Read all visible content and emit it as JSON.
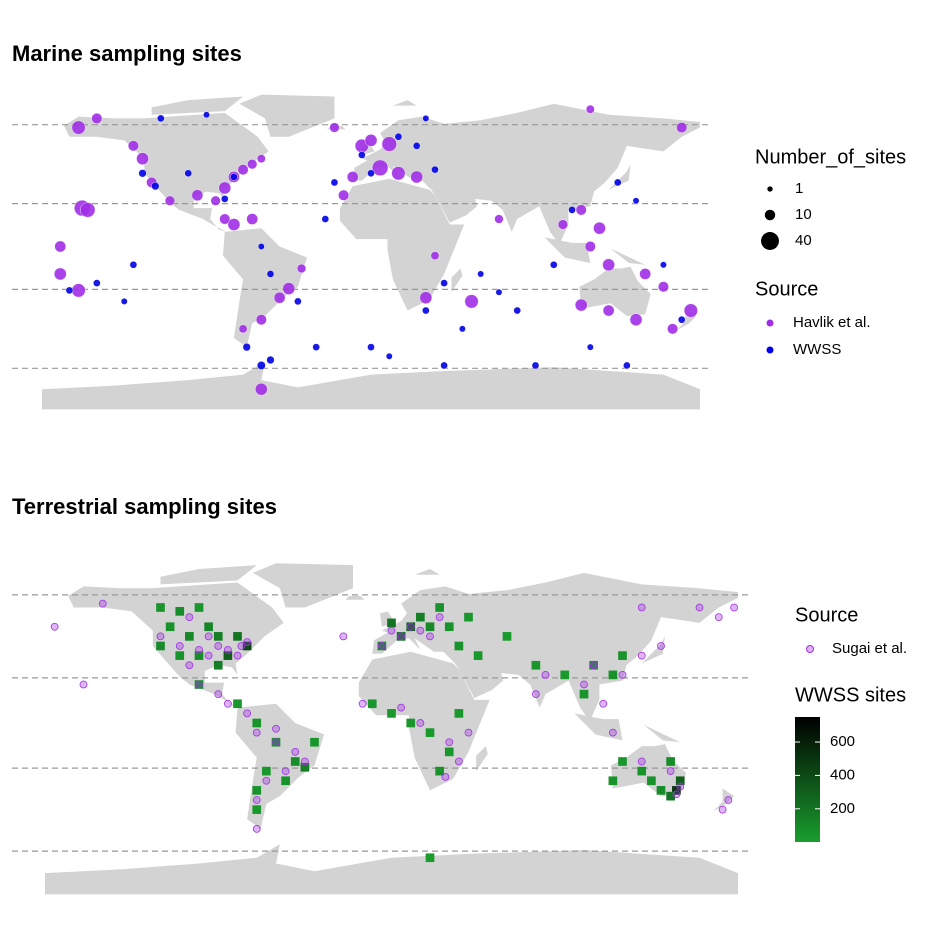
{
  "marine": {
    "title": "Marine sampling sites",
    "size_legend": {
      "title": "Number_of_sites",
      "values": [
        1,
        10,
        40
      ]
    },
    "color_legend": {
      "title": "Source",
      "entries": [
        {
          "name": "Havlik et al.",
          "color": "#a02ee6",
          "sites": [
            [
              -160,
              65,
              20
            ],
            [
              -150,
              70,
              10
            ],
            [
              -130,
              55,
              10
            ],
            [
              -125,
              48,
              15
            ],
            [
              -120,
              35,
              10
            ],
            [
              -110,
              25,
              8
            ],
            [
              -95,
              28,
              12
            ],
            [
              -85,
              25,
              8
            ],
            [
              -80,
              32,
              15
            ],
            [
              -75,
              38,
              12
            ],
            [
              -70,
              42,
              10
            ],
            [
              -65,
              45,
              8
            ],
            [
              -60,
              48,
              5
            ],
            [
              -158,
              21,
              30
            ],
            [
              -155,
              20,
              25
            ],
            [
              -170,
              -15,
              15
            ],
            [
              -160,
              -24,
              20
            ],
            [
              -170,
              0,
              12
            ],
            [
              -80,
              15,
              10
            ],
            [
              -75,
              12,
              15
            ],
            [
              -65,
              15,
              12
            ],
            [
              -45,
              -23,
              15
            ],
            [
              -50,
              -28,
              12
            ],
            [
              -60,
              -40,
              10
            ],
            [
              -70,
              -45,
              5
            ],
            [
              -38,
              -12,
              6
            ],
            [
              -15,
              28,
              10
            ],
            [
              -5,
              55,
              20
            ],
            [
              0,
              58,
              15
            ],
            [
              10,
              56,
              25
            ],
            [
              5,
              43,
              30
            ],
            [
              15,
              40,
              20
            ],
            [
              25,
              38,
              15
            ],
            [
              -10,
              38,
              12
            ],
            [
              30,
              -28,
              15
            ],
            [
              55,
              -30,
              20
            ],
            [
              35,
              -5,
              5
            ],
            [
              70,
              15,
              6
            ],
            [
              105,
              12,
              8
            ],
            [
              115,
              20,
              10
            ],
            [
              125,
              10,
              15
            ],
            [
              120,
              0,
              10
            ],
            [
              130,
              -10,
              15
            ],
            [
              150,
              -15,
              12
            ],
            [
              160,
              -22,
              10
            ],
            [
              115,
              -32,
              15
            ],
            [
              130,
              -35,
              12
            ],
            [
              145,
              -40,
              15
            ],
            [
              175,
              -35,
              20
            ],
            [
              165,
              -45,
              10
            ],
            [
              -60,
              -78,
              15
            ],
            [
              120,
              75,
              5
            ],
            [
              170,
              65,
              10
            ],
            [
              -20,
              65,
              8
            ]
          ]
        },
        {
          "name": "WWSS",
          "color": "#0000e6",
          "sites": [
            [
              -130,
              -10,
              3
            ],
            [
              -150,
              -20,
              3
            ],
            [
              -165,
              -24,
              3
            ],
            [
              -135,
              -30,
              2
            ],
            [
              -115,
              70,
              3
            ],
            [
              -90,
              72,
              2
            ],
            [
              -125,
              40,
              4
            ],
            [
              -118,
              33,
              4
            ],
            [
              -80,
              26,
              3
            ],
            [
              -75,
              38,
              3
            ],
            [
              -100,
              40,
              3
            ],
            [
              -20,
              35,
              3
            ],
            [
              -25,
              15,
              3
            ],
            [
              -60,
              0,
              2
            ],
            [
              -55,
              -15,
              3
            ],
            [
              -40,
              -30,
              3
            ],
            [
              -68,
              -55,
              4
            ],
            [
              -60,
              -65,
              5
            ],
            [
              -55,
              -62,
              4
            ],
            [
              -30,
              -55,
              3
            ],
            [
              0,
              -55,
              3
            ],
            [
              10,
              -60,
              2
            ],
            [
              30,
              -35,
              3
            ],
            [
              40,
              -20,
              3
            ],
            [
              60,
              -15,
              2
            ],
            [
              70,
              -25,
              2
            ],
            [
              80,
              -35,
              3
            ],
            [
              50,
              -45,
              2
            ],
            [
              90,
              -65,
              3
            ],
            [
              120,
              -55,
              2
            ],
            [
              140,
              -65,
              3
            ],
            [
              100,
              -10,
              3
            ],
            [
              110,
              20,
              3
            ],
            [
              135,
              35,
              3
            ],
            [
              145,
              25,
              2
            ],
            [
              160,
              -10,
              2
            ],
            [
              170,
              -40,
              3
            ],
            [
              -5,
              50,
              3
            ],
            [
              15,
              60,
              3
            ],
            [
              25,
              55,
              3
            ],
            [
              35,
              42,
              3
            ],
            [
              0,
              40,
              3
            ],
            [
              30,
              70,
              2
            ],
            [
              40,
              -65,
              3
            ]
          ]
        }
      ]
    }
  },
  "terrestrial": {
    "title": "Terrestrial sampling sites",
    "color_legend": {
      "title": "Source",
      "entries": [
        {
          "name": "Sugai et al.",
          "color": "#a02ee6",
          "sites": [
            [
              -120,
              45
            ],
            [
              -110,
              40
            ],
            [
              -100,
              38
            ],
            [
              -95,
              35
            ],
            [
              -90,
              40
            ],
            [
              -85,
              38
            ],
            [
              -80,
              35
            ],
            [
              -75,
              42
            ],
            [
              -78,
              40
            ],
            [
              -95,
              45
            ],
            [
              -105,
              30
            ],
            [
              -100,
              20
            ],
            [
              -90,
              15
            ],
            [
              -85,
              10
            ],
            [
              -75,
              5
            ],
            [
              -70,
              -5
            ],
            [
              -60,
              -10
            ],
            [
              -50,
              -15
            ],
            [
              -45,
              -20
            ],
            [
              -55,
              -25
            ],
            [
              -65,
              -30
            ],
            [
              -70,
              -40
            ],
            [
              -60,
              -3
            ],
            [
              -150,
              62
            ],
            [
              -175,
              50
            ],
            [
              -160,
              20
            ],
            [
              0,
              48
            ],
            [
              5,
              45
            ],
            [
              10,
              50
            ],
            [
              15,
              48
            ],
            [
              20,
              45
            ],
            [
              -5,
              40
            ],
            [
              25,
              55
            ],
            [
              -15,
              10
            ],
            [
              5,
              8
            ],
            [
              15,
              0
            ],
            [
              30,
              -10
            ],
            [
              35,
              -20
            ],
            [
              28,
              -28
            ],
            [
              40,
              -5
            ],
            [
              -70,
              -55
            ],
            [
              80,
              25
            ],
            [
              100,
              20
            ],
            [
              105,
              30
            ],
            [
              120,
              25
            ],
            [
              130,
              35
            ],
            [
              140,
              40
            ],
            [
              115,
              -5
            ],
            [
              130,
              -20
            ],
            [
              145,
              -25
            ],
            [
              150,
              -33
            ],
            [
              148,
              -37
            ],
            [
              175,
              -40
            ],
            [
              172,
              -45
            ],
            [
              110,
              10
            ],
            [
              75,
              15
            ],
            [
              -105,
              55
            ],
            [
              130,
              60
            ],
            [
              170,
              55
            ],
            [
              178,
              60
            ],
            [
              -25,
              45
            ],
            [
              160,
              60
            ]
          ]
        }
      ]
    },
    "colorbar": {
      "title": "WWSS sites",
      "clim": [
        1,
        750
      ],
      "ticks": [
        200,
        400,
        600
      ],
      "low_color": "#1a9e2e",
      "high_color": "#000000"
    },
    "cells": [
      [
        -120,
        60,
        50
      ],
      [
        -110,
        58,
        80
      ],
      [
        -100,
        60,
        40
      ],
      [
        -95,
        50,
        120
      ],
      [
        -115,
        50,
        60
      ],
      [
        -105,
        45,
        100
      ],
      [
        -90,
        45,
        150
      ],
      [
        -80,
        45,
        200
      ],
      [
        -85,
        35,
        300
      ],
      [
        -100,
        35,
        80
      ],
      [
        -110,
        35,
        60
      ],
      [
        -120,
        40,
        90
      ],
      [
        -75,
        40,
        400
      ],
      [
        -90,
        30,
        150
      ],
      [
        -100,
        20,
        60
      ],
      [
        -80,
        10,
        40
      ],
      [
        -70,
        0,
        50
      ],
      [
        -60,
        -10,
        60
      ],
      [
        -50,
        -20,
        80
      ],
      [
        -45,
        -23,
        150
      ],
      [
        -55,
        -30,
        60
      ],
      [
        -65,
        -25,
        40
      ],
      [
        -70,
        -35,
        50
      ],
      [
        -70,
        -45,
        30
      ],
      [
        -40,
        -10,
        40
      ],
      [
        0,
        52,
        200
      ],
      [
        10,
        50,
        300
      ],
      [
        15,
        55,
        150
      ],
      [
        20,
        50,
        100
      ],
      [
        25,
        60,
        60
      ],
      [
        5,
        45,
        200
      ],
      [
        -5,
        40,
        100
      ],
      [
        30,
        50,
        60
      ],
      [
        40,
        55,
        40
      ],
      [
        35,
        40,
        60
      ],
      [
        45,
        35,
        30
      ],
      [
        60,
        45,
        20
      ],
      [
        75,
        30,
        40
      ],
      [
        90,
        25,
        30
      ],
      [
        100,
        15,
        50
      ],
      [
        105,
        30,
        40
      ],
      [
        115,
        25,
        60
      ],
      [
        120,
        35,
        50
      ],
      [
        -10,
        10,
        40
      ],
      [
        0,
        5,
        30
      ],
      [
        10,
        0,
        40
      ],
      [
        20,
        -5,
        30
      ],
      [
        30,
        -15,
        40
      ],
      [
        25,
        -25,
        60
      ],
      [
        35,
        5,
        30
      ],
      [
        115,
        -30,
        60
      ],
      [
        120,
        -20,
        40
      ],
      [
        130,
        -25,
        50
      ],
      [
        135,
        -30,
        60
      ],
      [
        145,
        -20,
        80
      ],
      [
        150,
        -30,
        300
      ],
      [
        148,
        -35,
        500
      ],
      [
        145,
        -38,
        200
      ],
      [
        140,
        -35,
        80
      ],
      [
        20,
        -70,
        10
      ]
    ]
  }
}
